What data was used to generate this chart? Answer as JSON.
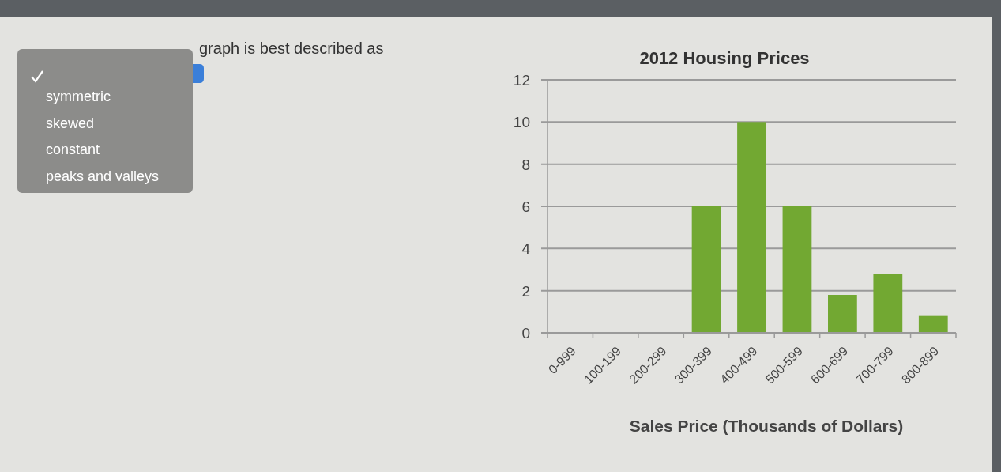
{
  "chart_data": {
    "type": "bar",
    "title": "2012 Housing Prices",
    "xlabel": "Sales Price (Thousands of Dollars)",
    "categories": [
      "0-999",
      "100-199",
      "200-299",
      "300-399",
      "400-499",
      "500-599",
      "600-699",
      "700-799",
      "800-899"
    ],
    "values": [
      0,
      0,
      0,
      6,
      10,
      6,
      1.8,
      2.8,
      0.8
    ],
    "color": "#72a832",
    "ylim": [
      0,
      12
    ],
    "yticks": [
      0,
      2,
      4,
      6,
      8,
      10,
      12
    ],
    "grid": "y",
    "annotations": [
      "graph is best described as",
      "symmetric",
      "skewed",
      "constant",
      "peaks and valleys"
    ]
  }
}
